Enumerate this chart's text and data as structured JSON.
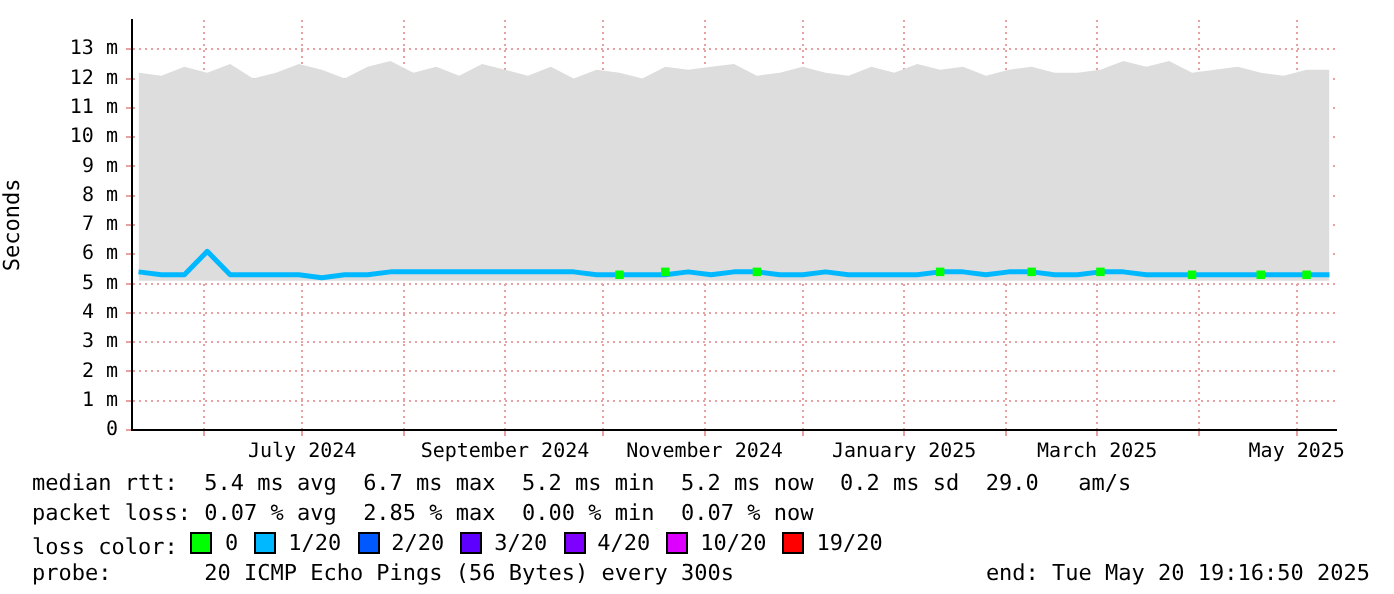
{
  "chart_data": {
    "type": "line",
    "ylabel": "Seconds",
    "legend_title": "loss color:",
    "legend": "bottom",
    "grid": true,
    "xlim": [
      "2024-05-10",
      "2025-05-13"
    ],
    "xticks": [
      {
        "value": "2024-06-01",
        "label": null
      },
      {
        "value": "2024-07-01",
        "label": "July 2024"
      },
      {
        "value": "2024-08-01",
        "label": null
      },
      {
        "value": "2024-09-01",
        "label": "September 2024"
      },
      {
        "value": "2024-10-01",
        "label": null
      },
      {
        "value": "2024-11-01",
        "label": "November 2024"
      },
      {
        "value": "2024-12-01",
        "label": null
      },
      {
        "value": "2025-01-01",
        "label": "January 2025"
      },
      {
        "value": "2025-02-01",
        "label": null
      },
      {
        "value": "2025-03-01",
        "label": "March 2025"
      },
      {
        "value": "2025-04-01",
        "label": null
      },
      {
        "value": "2025-05-01",
        "label": "May 2025"
      }
    ],
    "ylim": [
      0,
      14
    ],
    "yticks": [
      0,
      {
        "value": 1,
        "label": "1 m"
      },
      {
        "value": 2,
        "label": "2 m"
      },
      {
        "value": 3,
        "label": "3 m"
      },
      {
        "value": 4,
        "label": "4 m"
      },
      {
        "value": 5,
        "label": "5 m"
      },
      {
        "value": 6,
        "label": "6 m"
      },
      {
        "value": 7,
        "label": "7 m"
      },
      {
        "value": 8,
        "label": "8 m"
      },
      {
        "value": 9,
        "label": "9 m"
      },
      {
        "value": 10,
        "label": "10 m"
      },
      {
        "value": 11,
        "label": "11 m"
      },
      {
        "value": 12,
        "label": "12 m"
      },
      {
        "value": 13,
        "label": "13 m"
      }
    ],
    "x": [
      "2024-05-12",
      "2024-05-19",
      "2024-05-26",
      "2024-06-02",
      "2024-06-09",
      "2024-06-16",
      "2024-06-23",
      "2024-06-30",
      "2024-07-07",
      "2024-07-14",
      "2024-07-21",
      "2024-07-28",
      "2024-08-04",
      "2024-08-11",
      "2024-08-18",
      "2024-08-25",
      "2024-09-01",
      "2024-09-08",
      "2024-09-15",
      "2024-09-22",
      "2024-09-29",
      "2024-10-06",
      "2024-10-13",
      "2024-10-20",
      "2024-10-27",
      "2024-11-03",
      "2024-11-10",
      "2024-11-17",
      "2024-11-24",
      "2024-12-01",
      "2024-12-08",
      "2024-12-15",
      "2024-12-22",
      "2024-12-29",
      "2025-01-05",
      "2025-01-12",
      "2025-01-19",
      "2025-01-26",
      "2025-02-02",
      "2025-02-09",
      "2025-02-16",
      "2025-02-23",
      "2025-03-02",
      "2025-03-09",
      "2025-03-16",
      "2025-03-23",
      "2025-03-30",
      "2025-04-06",
      "2025-04-13",
      "2025-04-20",
      "2025-04-27",
      "2025-05-04",
      "2025-05-11"
    ],
    "series": [
      {
        "name": "0",
        "color": "#00ff00",
        "type": "scatter",
        "marker": "square",
        "values": [
          null,
          null,
          null,
          null,
          null,
          null,
          null,
          null,
          null,
          null,
          null,
          null,
          null,
          null,
          null,
          null,
          null,
          null,
          null,
          null,
          null,
          5.3,
          null,
          5.4,
          null,
          null,
          null,
          5.4,
          null,
          null,
          null,
          null,
          null,
          null,
          null,
          5.4,
          null,
          null,
          null,
          5.4,
          null,
          null,
          5.4,
          null,
          null,
          null,
          5.3,
          null,
          null,
          5.3,
          null,
          5.3,
          null
        ]
      },
      {
        "name": "1/20",
        "color": "#00b8ff",
        "values": [
          5.4,
          5.3,
          5.3,
          6.1,
          5.3,
          5.3,
          5.3,
          5.3,
          5.2,
          5.3,
          5.3,
          5.4,
          5.4,
          5.4,
          5.4,
          5.4,
          5.4,
          5.4,
          5.4,
          5.4,
          5.3,
          5.3,
          5.3,
          5.3,
          5.4,
          5.3,
          5.4,
          5.4,
          5.3,
          5.3,
          5.4,
          5.3,
          5.3,
          5.3,
          5.3,
          5.4,
          5.4,
          5.3,
          5.4,
          5.4,
          5.3,
          5.3,
          5.4,
          5.4,
          5.3,
          5.3,
          5.3,
          5.3,
          5.3,
          5.3,
          5.3,
          5.3,
          5.3
        ],
        "lower": [
          5.1,
          5.1,
          5.1,
          5.1,
          5.1,
          5.1,
          5.1,
          5.1,
          5.1,
          5.1,
          5.1,
          5.1,
          5.1,
          5.1,
          5.1,
          5.1,
          5.1,
          5.1,
          5.1,
          5.1,
          5.1,
          5.1,
          5.1,
          5.1,
          5.1,
          5.1,
          5.1,
          5.1,
          5.1,
          5.1,
          5.1,
          5.1,
          5.1,
          5.1,
          5.1,
          5.1,
          5.1,
          5.1,
          5.1,
          5.1,
          5.1,
          5.1,
          5.1,
          5.1,
          5.1,
          5.1,
          5.1,
          5.1,
          5.1,
          5.1,
          5.1,
          5.1,
          5.1
        ],
        "upper": [
          12.2,
          12.1,
          12.4,
          12.2,
          12.5,
          12.0,
          12.2,
          12.5,
          12.3,
          12.0,
          12.4,
          12.6,
          12.2,
          12.4,
          12.1,
          12.5,
          12.3,
          12.1,
          12.4,
          12.0,
          12.3,
          12.2,
          12.0,
          12.4,
          12.3,
          12.4,
          12.5,
          12.1,
          12.2,
          12.4,
          12.2,
          12.1,
          12.4,
          12.2,
          12.5,
          12.3,
          12.4,
          12.1,
          12.3,
          12.4,
          12.2,
          12.2,
          12.3,
          12.6,
          12.4,
          12.6,
          12.2,
          12.3,
          12.4,
          12.2,
          12.1,
          12.3,
          12.3
        ]
      },
      {
        "name": "2/20",
        "color": "#0059ff",
        "values": [
          null,
          null,
          null,
          null,
          null,
          null,
          null,
          null,
          null,
          null,
          null,
          null,
          null,
          null,
          null,
          null,
          null,
          null,
          null,
          null,
          null,
          null,
          null,
          null,
          null,
          null,
          null,
          null,
          null,
          null,
          null,
          null,
          null,
          null,
          null,
          null,
          null,
          null,
          null,
          null,
          null,
          null,
          null,
          null,
          null,
          null,
          null,
          null,
          null,
          null,
          null,
          null,
          null
        ]
      },
      {
        "name": "3/20",
        "color": "#5e00ff",
        "values": [
          null,
          null,
          null,
          null,
          null,
          null,
          null,
          null,
          null,
          null,
          null,
          null,
          null,
          null,
          null,
          null,
          null,
          null,
          null,
          null,
          null,
          null,
          null,
          null,
          null,
          null,
          null,
          null,
          null,
          null,
          null,
          null,
          null,
          null,
          null,
          null,
          null,
          null,
          null,
          null,
          null,
          null,
          null,
          null,
          null,
          null,
          null,
          null,
          null,
          null,
          null,
          null,
          null
        ]
      },
      {
        "name": "4/20",
        "color": "#7e00ff",
        "values": [
          null,
          null,
          null,
          null,
          null,
          null,
          null,
          null,
          null,
          null,
          null,
          null,
          null,
          null,
          null,
          null,
          null,
          null,
          null,
          null,
          null,
          null,
          null,
          null,
          null,
          null,
          null,
          null,
          null,
          null,
          null,
          null,
          null,
          null,
          null,
          null,
          null,
          null,
          null,
          null,
          null,
          null,
          null,
          null,
          null,
          null,
          null,
          null,
          null,
          null,
          null,
          null,
          null
        ]
      },
      {
        "name": "10/20",
        "color": "#dd00ff",
        "values": [
          null,
          null,
          null,
          null,
          null,
          null,
          null,
          null,
          null,
          null,
          null,
          null,
          null,
          null,
          null,
          null,
          null,
          null,
          null,
          null,
          null,
          null,
          null,
          null,
          null,
          null,
          null,
          null,
          null,
          null,
          null,
          null,
          null,
          null,
          null,
          null,
          null,
          null,
          null,
          null,
          null,
          null,
          null,
          null,
          null,
          null,
          null,
          null,
          null,
          null,
          null,
          null,
          null
        ]
      },
      {
        "name": "19/20",
        "color": "#ff0000",
        "values": [
          null,
          null,
          null,
          null,
          null,
          null,
          null,
          null,
          null,
          null,
          null,
          null,
          null,
          null,
          null,
          null,
          null,
          null,
          null,
          null,
          null,
          null,
          null,
          null,
          null,
          null,
          null,
          null,
          null,
          null,
          null,
          null,
          null,
          null,
          null,
          null,
          null,
          null,
          null,
          null,
          null,
          null,
          null,
          null,
          null,
          null,
          null,
          null,
          null,
          null,
          null,
          null,
          null
        ]
      }
    ],
    "annotations": [
      "median rtt:  5.4 ms avg  6.7 ms max  5.2 ms min  5.2 ms now  0.2 ms sd  29.0   am/s",
      "packet loss: 0.07 % avg  2.85 % max  0.00 % min  0.07 % now",
      "probe:       20 ICMP Echo Pings (56 Bytes) every 300s",
      "end: Tue May 20 19:16:50 2025"
    ]
  }
}
